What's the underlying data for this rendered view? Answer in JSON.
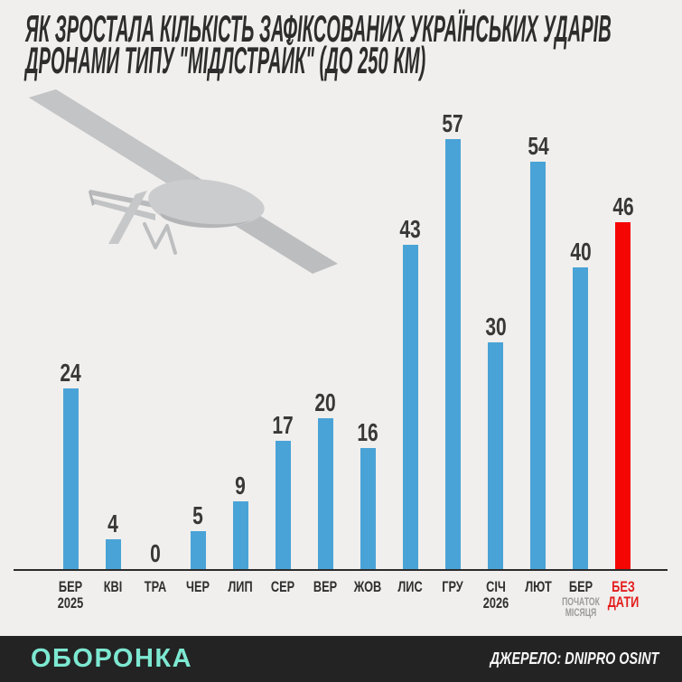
{
  "header": {
    "line1": "ЯК ЗРОСТАЛА КІЛЬКІСТЬ ЗАФІКСОВАНИХ УКРАЇНСЬКИХ УДАРІВ",
    "line2": "ДРОНАМИ ТИПУ \"МІДЛСТРАЙК\" (ДО 250 КМ)"
  },
  "chart_data": {
    "type": "bar",
    "title": "ЯК ЗРОСТАЛА КІЛЬКІСТЬ ЗАФІКСОВАНИХ УКРАЇНСЬКИХ УДАРІВ ДРОНАМИ ТИПУ \"МІДЛСТРАЙК\" (ДО 250 КМ)",
    "categories": [
      "БЕР 2025",
      "КВІ",
      "ТРА",
      "ЧЕР",
      "ЛИП",
      "СЕР",
      "ВЕР",
      "ЖОВ",
      "ЛИС",
      "ГРУ",
      "СІЧ 2026",
      "ЛЮТ",
      "БЕР ПОЧАТОК МІСЯЦЯ",
      "БЕЗ ДАТИ"
    ],
    "values": [
      24,
      4,
      0,
      5,
      9,
      17,
      20,
      16,
      43,
      57,
      30,
      54,
      40,
      46
    ],
    "ylim": [
      0,
      60
    ],
    "grid": false,
    "legend": false,
    "highlight_index": 13,
    "colors": {
      "bar": "#4aa3d7",
      "highlight_bar": "#f40603",
      "value_label": "#383838",
      "axis": "#2b2b2b",
      "axis_label": "#2f2f2f",
      "axis_label_red": "#e31e1e",
      "sublabel_muted": "#9b9b9b"
    },
    "columns": [
      {
        "label": "БЕР",
        "sub": "2025",
        "value": 24
      },
      {
        "label": "КВІ",
        "value": 4
      },
      {
        "label": "ТРА",
        "value": 0
      },
      {
        "label": "ЧЕР",
        "value": 5
      },
      {
        "label": "ЛИП",
        "value": 9
      },
      {
        "label": "СЕР",
        "value": 17
      },
      {
        "label": "ВЕР",
        "value": 20
      },
      {
        "label": "ЖОВ",
        "value": 16
      },
      {
        "label": "ЛИС",
        "value": 43
      },
      {
        "label": "ГРУ",
        "value": 57
      },
      {
        "label": "СІЧ",
        "sub": "2026",
        "value": 30
      },
      {
        "label": "ЛЮТ",
        "value": 54
      },
      {
        "label": "БЕР",
        "sub": "ПОЧАТОК МІСЯЦЯ",
        "muted_sub": true,
        "value": 40
      },
      {
        "label": "БЕЗ ДАТИ",
        "value": 46,
        "highlight": true
      }
    ]
  },
  "footer": {
    "logo": "ОБОРОНКА",
    "source": "ДЖЕРЕЛО: DNIPRO OSINT",
    "logo_color": "#7de8d1",
    "background": "#232323"
  },
  "drone_icon": "fixed-wing-uav-drone"
}
